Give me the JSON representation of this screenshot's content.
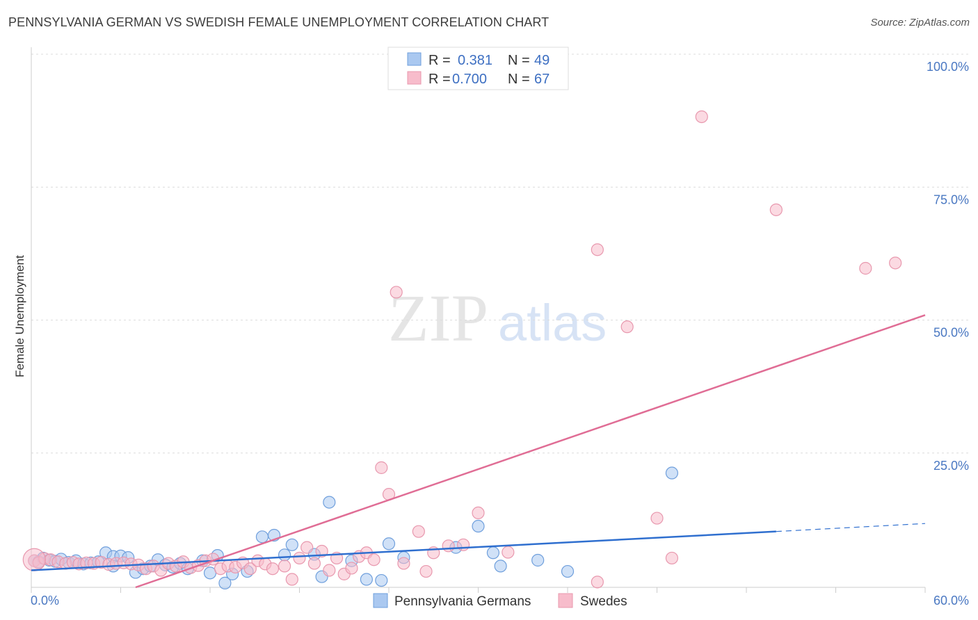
{
  "header": {
    "title": "PENNSYLVANIA GERMAN VS SWEDISH FEMALE UNEMPLOYMENT CORRELATION CHART",
    "source": "Source: ZipAtlas.com"
  },
  "watermark": {
    "zip": "ZIP",
    "atlas": "atlas"
  },
  "colors": {
    "blue_fill": "#aac8f0",
    "blue_stroke": "#6f9fdc",
    "blue_line": "#2f6fcf",
    "pink_fill": "#f7bccb",
    "pink_stroke": "#e898ae",
    "pink_line": "#e06d95",
    "tick": "#4a78c2",
    "grid": "#dcdcdc"
  },
  "legend": {
    "rows": [
      {
        "r_label": "R =",
        "r_value": "0.381",
        "n_label": "N =",
        "n_value": "49",
        "series": "blue"
      },
      {
        "r_label": "R =",
        "r_value": "0.700",
        "n_label": "N =",
        "n_value": "67",
        "series": "pink"
      }
    ]
  },
  "chart_data": {
    "type": "scatter",
    "title": "PENNSYLVANIA GERMAN VS SWEDISH FEMALE UNEMPLOYMENT CORRELATION CHART",
    "xlabel": "",
    "ylabel": "Female Unemployment",
    "xlim": [
      0,
      60
    ],
    "ylim": [
      0,
      100
    ],
    "x_tick_labels": [
      "0.0%",
      "60.0%"
    ],
    "y_ticks": [
      25,
      50,
      75,
      100
    ],
    "y_tick_labels": [
      "25.0%",
      "50.0%",
      "75.0%",
      "100.0%"
    ],
    "grid": true,
    "legend_position": "top-center",
    "series": [
      {
        "name": "Pennsylvania Germans",
        "color": "blue",
        "R": 0.381,
        "N": 49,
        "trend": {
          "x": [
            0,
            50
          ],
          "y": [
            3.2,
            10.5
          ],
          "extend_dashed_to": [
            60,
            12.0
          ]
        },
        "points": [
          [
            0.2,
            5.0
          ],
          [
            0.5,
            4.8
          ],
          [
            0.8,
            5.5
          ],
          [
            1.2,
            5.1
          ],
          [
            1.6,
            4.9
          ],
          [
            2.0,
            5.3
          ],
          [
            2.5,
            4.7
          ],
          [
            3.0,
            5.0
          ],
          [
            3.5,
            4.4
          ],
          [
            4.0,
            4.6
          ],
          [
            4.5,
            4.8
          ],
          [
            5.0,
            6.5
          ],
          [
            5.5,
            5.8
          ],
          [
            6.0,
            5.9
          ],
          [
            6.5,
            5.6
          ],
          [
            7.0,
            2.8
          ],
          [
            7.5,
            3.5
          ],
          [
            8.0,
            4.0
          ],
          [
            8.5,
            5.2
          ],
          [
            9.0,
            4.2
          ],
          [
            9.5,
            3.8
          ],
          [
            10.0,
            4.5
          ],
          [
            10.5,
            3.5
          ],
          [
            11.5,
            5.0
          ],
          [
            12.0,
            2.7
          ],
          [
            12.5,
            6.0
          ],
          [
            13.0,
            0.8
          ],
          [
            13.5,
            2.5
          ],
          [
            14.5,
            3.0
          ],
          [
            15.5,
            9.5
          ],
          [
            16.3,
            9.8
          ],
          [
            17.0,
            6.1
          ],
          [
            17.5,
            8.0
          ],
          [
            19.0,
            6.2
          ],
          [
            19.5,
            2.0
          ],
          [
            20.0,
            16.0
          ],
          [
            21.5,
            5.0
          ],
          [
            22.5,
            1.5
          ],
          [
            23.5,
            1.3
          ],
          [
            24.0,
            8.2
          ],
          [
            25.0,
            5.6
          ],
          [
            28.5,
            7.5
          ],
          [
            30.0,
            11.5
          ],
          [
            31.0,
            6.5
          ],
          [
            31.5,
            4.0
          ],
          [
            34.0,
            5.1
          ],
          [
            43.0,
            21.5
          ],
          [
            36.0,
            3.0
          ],
          [
            5.5,
            4.0
          ]
        ]
      },
      {
        "name": "Swedes",
        "color": "pink",
        "R": 0.7,
        "N": 67,
        "trend": {
          "x": [
            7.0,
            60
          ],
          "y": [
            0,
            51.2
          ]
        },
        "points": [
          [
            0.2,
            5.0
          ],
          [
            0.5,
            4.6
          ],
          [
            0.9,
            5.4
          ],
          [
            1.3,
            5.2
          ],
          [
            1.8,
            4.8
          ],
          [
            2.3,
            4.5
          ],
          [
            2.8,
            4.7
          ],
          [
            3.2,
            4.4
          ],
          [
            3.7,
            4.6
          ],
          [
            4.2,
            4.5
          ],
          [
            4.7,
            4.7
          ],
          [
            5.2,
            4.3
          ],
          [
            5.7,
            4.5
          ],
          [
            6.2,
            4.6
          ],
          [
            6.7,
            4.4
          ],
          [
            7.2,
            4.2
          ],
          [
            7.7,
            3.5
          ],
          [
            8.2,
            4.0
          ],
          [
            8.7,
            3.2
          ],
          [
            9.2,
            4.5
          ],
          [
            9.7,
            4.0
          ],
          [
            10.2,
            4.8
          ],
          [
            10.7,
            3.7
          ],
          [
            11.2,
            4.1
          ],
          [
            11.7,
            5.0
          ],
          [
            12.2,
            5.3
          ],
          [
            12.7,
            3.5
          ],
          [
            13.2,
            4.0
          ],
          [
            13.7,
            3.8
          ],
          [
            14.2,
            4.6
          ],
          [
            14.7,
            3.5
          ],
          [
            15.2,
            5.0
          ],
          [
            15.7,
            4.4
          ],
          [
            16.2,
            3.5
          ],
          [
            17.0,
            4.0
          ],
          [
            17.5,
            1.5
          ],
          [
            18.0,
            5.5
          ],
          [
            18.5,
            7.5
          ],
          [
            19.0,
            4.5
          ],
          [
            19.5,
            6.8
          ],
          [
            20.0,
            3.2
          ],
          [
            20.5,
            5.5
          ],
          [
            21.0,
            2.5
          ],
          [
            21.5,
            3.6
          ],
          [
            22.0,
            5.8
          ],
          [
            22.5,
            6.5
          ],
          [
            23.0,
            5.2
          ],
          [
            23.5,
            22.5
          ],
          [
            24.0,
            17.5
          ],
          [
            25.0,
            4.5
          ],
          [
            26.0,
            10.5
          ],
          [
            26.5,
            3.0
          ],
          [
            27.0,
            6.5
          ],
          [
            28.0,
            7.8
          ],
          [
            29.0,
            8.0
          ],
          [
            30.0,
            14.0
          ],
          [
            32.0,
            6.6
          ],
          [
            38.0,
            63.5
          ],
          [
            40.0,
            49.0
          ],
          [
            42.0,
            13.0
          ],
          [
            43.0,
            5.5
          ],
          [
            45.0,
            88.5
          ],
          [
            50.0,
            71.0
          ],
          [
            56.0,
            60.0
          ],
          [
            58.0,
            61.0
          ],
          [
            38.0,
            1.0
          ],
          [
            24.5,
            55.5
          ]
        ]
      }
    ]
  }
}
